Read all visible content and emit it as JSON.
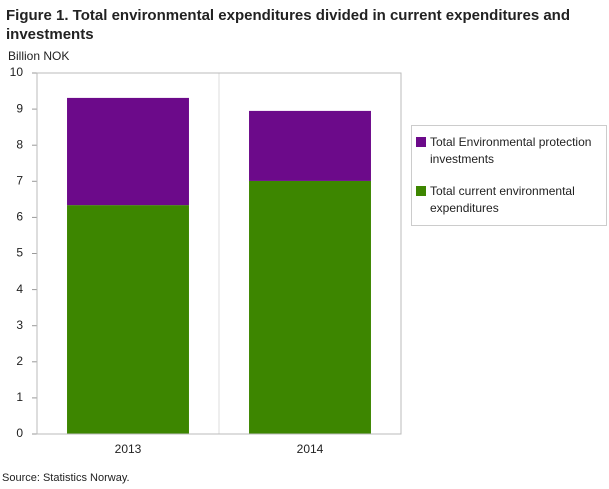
{
  "chart_data": {
    "type": "bar",
    "stacked": true,
    "title": "Figure 1. Total environmental expenditures divided in current expenditures and investments",
    "y_label": "Billion  NOK",
    "source": "Source: Statistics Norway.",
    "categories": [
      "2013",
      "2014"
    ],
    "series": [
      {
        "name": "Total current environmental expenditures",
        "color": "#3d8600",
        "values": [
          6.34,
          7.01
        ]
      },
      {
        "name": "Total Environmental protection investments",
        "color": "#6c0a8a",
        "values": [
          2.97,
          1.94
        ]
      }
    ],
    "ylim": [
      0,
      10
    ],
    "yticks": [
      0,
      1,
      2,
      3,
      4,
      5,
      6,
      7,
      8,
      9,
      10
    ],
    "grid": false
  }
}
